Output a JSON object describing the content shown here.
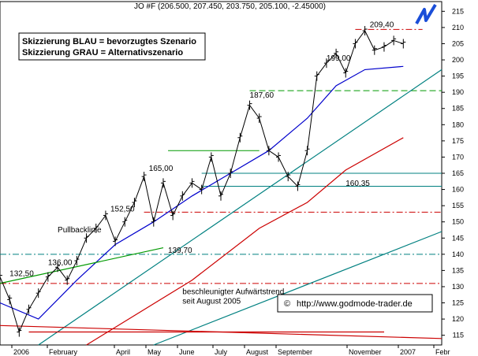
{
  "chart_data": {
    "type": "bar",
    "symbol_header": "JO #F (206.500, 207.450, 203.750, 205.100, -2.45000)",
    "legend_lines": [
      "Skizzierung BLAU = bevorzugtes Szenario",
      "Skizzierung GRAU = Alternativszenario"
    ],
    "copyright": "http://www.godmode-trader.de",
    "y_ticks": [
      115,
      120,
      125,
      130,
      135,
      140,
      145,
      150,
      155,
      160,
      165,
      170,
      175,
      180,
      185,
      190,
      195,
      200,
      205,
      210,
      215
    ],
    "ylim": [
      112,
      218
    ],
    "x_months": [
      "2006",
      "February",
      "April",
      "May",
      "June",
      "July",
      "August",
      "September",
      "November",
      "2007",
      "Febr"
    ],
    "annotations": [
      {
        "text": "209,40",
        "x": 38.5,
        "y": 209.4
      },
      {
        "text": "199,00",
        "x": 34,
        "y": 199.0
      },
      {
        "text": "187,60",
        "x": 26,
        "y": 187.6
      },
      {
        "text": "165,00",
        "x": 15.5,
        "y": 165.0
      },
      {
        "text": "160,35",
        "x": 36,
        "y": 160.35
      },
      {
        "text": "152,50",
        "x": 11.5,
        "y": 152.5
      },
      {
        "text": "139,70",
        "x": 17.5,
        "y": 139.7
      },
      {
        "text": "136,00",
        "x": 5,
        "y": 136.0
      },
      {
        "text": "132,50",
        "x": 1,
        "y": 132.5
      },
      {
        "text": "Pullbacklinie",
        "x": 6,
        "y": 146
      },
      {
        "text": "beschleunigter Aufwärtstrend",
        "x": 19,
        "y": 127
      },
      {
        "text": "seit August 2005",
        "x": 19,
        "y": 124
      }
    ],
    "price_points": [
      [
        0,
        133
      ],
      [
        1,
        126
      ],
      [
        2,
        116
      ],
      [
        3,
        123
      ],
      [
        4,
        128
      ],
      [
        5,
        133
      ],
      [
        6,
        136
      ],
      [
        7,
        132
      ],
      [
        8,
        138
      ],
      [
        9,
        145
      ],
      [
        10,
        148
      ],
      [
        11,
        152
      ],
      [
        12,
        144
      ],
      [
        13,
        150
      ],
      [
        14,
        156
      ],
      [
        15,
        164
      ],
      [
        16,
        150
      ],
      [
        17,
        162
      ],
      [
        18,
        152
      ],
      [
        19,
        158
      ],
      [
        20,
        162
      ],
      [
        21,
        160
      ],
      [
        22,
        170
      ],
      [
        23,
        158
      ],
      [
        24,
        165
      ],
      [
        25,
        176
      ],
      [
        26,
        186
      ],
      [
        27,
        182
      ],
      [
        28,
        172
      ],
      [
        29,
        170
      ],
      [
        30,
        164
      ],
      [
        31,
        161
      ],
      [
        32,
        172
      ],
      [
        33,
        195
      ],
      [
        34,
        199
      ],
      [
        35,
        202
      ],
      [
        36,
        196
      ],
      [
        37,
        205
      ],
      [
        38,
        209
      ],
      [
        39,
        203
      ],
      [
        40,
        204
      ],
      [
        41,
        206
      ],
      [
        42,
        205
      ]
    ],
    "horizontal_levels": [
      {
        "y": 209.4,
        "style": "dash-dot",
        "color": "#cc0000",
        "x_start": 37,
        "x_end": 44
      },
      {
        "y": 190.5,
        "style": "dashed",
        "color": "#009900",
        "x_start": 26,
        "x_end": 46
      },
      {
        "y": 172.0,
        "style": "solid",
        "color": "#009900",
        "x_start": 17.5,
        "x_end": 27
      },
      {
        "y": 165.0,
        "style": "solid",
        "color": "#008080",
        "x_start": 21,
        "x_end": 46
      },
      {
        "y": 161.0,
        "style": "solid",
        "color": "#008080",
        "x_start": 21,
        "x_end": 46
      },
      {
        "y": 153.0,
        "style": "dash-dot",
        "color": "#cc0000",
        "x_start": 15,
        "x_end": 46
      },
      {
        "y": 140.0,
        "style": "dash-dot",
        "color": "#008080",
        "x_start": 0,
        "x_end": 46
      },
      {
        "y": 131.0,
        "style": "dash-dot",
        "color": "#cc0000",
        "x_start": 0,
        "x_end": 46
      }
    ],
    "trend_lines": [
      {
        "name": "teal-upper",
        "color": "#008080",
        "points": [
          [
            4,
            112
          ],
          [
            46,
            197
          ]
        ]
      },
      {
        "name": "teal-lower",
        "color": "#008080",
        "points": [
          [
            16,
            112
          ],
          [
            46,
            147
          ]
        ]
      },
      {
        "name": "red-ma",
        "color": "#cc0000",
        "points": [
          [
            9,
            112
          ],
          [
            20,
            132
          ],
          [
            27,
            148
          ],
          [
            32,
            156
          ],
          [
            36,
            166
          ],
          [
            42,
            176
          ]
        ]
      },
      {
        "name": "blue-ma",
        "color": "#0000cc",
        "points": [
          [
            0,
            125
          ],
          [
            4,
            120
          ],
          [
            8,
            132
          ],
          [
            12,
            143
          ],
          [
            16,
            150
          ],
          [
            20,
            158
          ],
          [
            24,
            165
          ],
          [
            28,
            172
          ],
          [
            32,
            182
          ],
          [
            35,
            192
          ],
          [
            38,
            197
          ],
          [
            42,
            198
          ]
        ]
      },
      {
        "name": "green-pullback",
        "color": "#009900",
        "points": [
          [
            0,
            131
          ],
          [
            17,
            142
          ]
        ]
      },
      {
        "name": "red-falling-trend",
        "color": "#cc0000",
        "points": [
          [
            0,
            118
          ],
          [
            46,
            114
          ]
        ]
      },
      {
        "name": "red-dashdot-falling",
        "color": "#cc0000",
        "points": [
          [
            3,
            116
          ],
          [
            40,
            116
          ]
        ]
      }
    ]
  }
}
